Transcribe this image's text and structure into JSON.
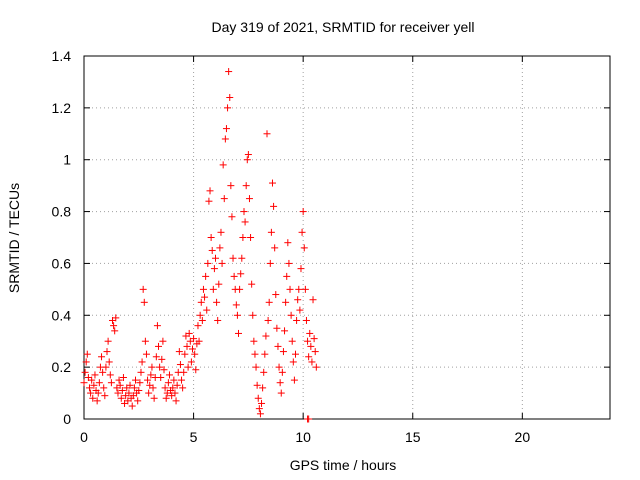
{
  "chart_data": {
    "type": "scatter",
    "title": "Day 319 of 2021, SRMTID for receiver yell",
    "xlabel": "GPS time / hours",
    "ylabel": "SRMTID / TECUs",
    "xlim": [
      0,
      24
    ],
    "ylim": [
      0,
      1.4
    ],
    "x_ticks": [
      0,
      5,
      10,
      15,
      20
    ],
    "y_ticks": [
      0,
      0.2,
      0.4,
      0.6,
      0.8,
      1,
      1.2,
      1.4
    ],
    "x_tick_labels": [
      "0",
      "5",
      "10",
      "15",
      "20"
    ],
    "y_tick_labels": [
      "0",
      "0.2",
      "0.4",
      "0.6",
      "0.8",
      "1",
      "1.2",
      "1.4"
    ],
    "grid": true,
    "marker": "+",
    "marker_color": "#ff0000",
    "series": [
      {
        "name": "SRMTID",
        "points": [
          [
            0.0,
            0.14
          ],
          [
            0.05,
            0.18
          ],
          [
            0.1,
            0.22
          ],
          [
            0.15,
            0.25
          ],
          [
            0.2,
            0.16
          ],
          [
            0.25,
            0.12
          ],
          [
            0.3,
            0.1
          ],
          [
            0.35,
            0.15
          ],
          [
            0.4,
            0.08
          ],
          [
            0.45,
            0.13
          ],
          [
            0.5,
            0.17
          ],
          [
            0.55,
            0.11
          ],
          [
            0.6,
            0.07
          ],
          [
            0.65,
            0.1
          ],
          [
            0.7,
            0.14
          ],
          [
            0.75,
            0.2
          ],
          [
            0.8,
            0.24
          ],
          [
            0.85,
            0.18
          ],
          [
            0.9,
            0.12
          ],
          [
            0.95,
            0.09
          ],
          [
            1.0,
            0.2
          ],
          [
            1.05,
            0.26
          ],
          [
            1.1,
            0.3
          ],
          [
            1.15,
            0.22
          ],
          [
            1.2,
            0.17
          ],
          [
            1.25,
            0.14
          ],
          [
            1.3,
            0.38
          ],
          [
            1.35,
            0.36
          ],
          [
            1.4,
            0.34
          ],
          [
            1.45,
            0.39
          ],
          [
            1.5,
            0.12
          ],
          [
            1.55,
            0.1
          ],
          [
            1.6,
            0.15
          ],
          [
            1.65,
            0.13
          ],
          [
            1.7,
            0.08
          ],
          [
            1.75,
            0.11
          ],
          [
            1.8,
            0.16
          ],
          [
            1.85,
            0.06
          ],
          [
            1.9,
            0.09
          ],
          [
            1.95,
            0.12
          ],
          [
            2.0,
            0.07
          ],
          [
            2.05,
            0.1
          ],
          [
            2.1,
            0.13
          ],
          [
            2.15,
            0.08
          ],
          [
            2.2,
            0.05
          ],
          [
            2.25,
            0.09
          ],
          [
            2.3,
            0.12
          ],
          [
            2.35,
            0.15
          ],
          [
            2.4,
            0.1
          ],
          [
            2.45,
            0.07
          ],
          [
            2.5,
            0.11
          ],
          [
            2.55,
            0.14
          ],
          [
            2.6,
            0.18
          ],
          [
            2.65,
            0.22
          ],
          [
            2.7,
            0.5
          ],
          [
            2.75,
            0.45
          ],
          [
            2.8,
            0.3
          ],
          [
            2.85,
            0.25
          ],
          [
            2.9,
            0.15
          ],
          [
            2.95,
            0.1
          ],
          [
            3.0,
            0.13
          ],
          [
            3.05,
            0.17
          ],
          [
            3.1,
            0.2
          ],
          [
            3.15,
            0.12
          ],
          [
            3.2,
            0.08
          ],
          [
            3.25,
            0.16
          ],
          [
            3.3,
            0.24
          ],
          [
            3.35,
            0.36
          ],
          [
            3.4,
            0.28
          ],
          [
            3.45,
            0.2
          ],
          [
            3.5,
            0.16
          ],
          [
            3.55,
            0.23
          ],
          [
            3.6,
            0.3
          ],
          [
            3.65,
            0.19
          ],
          [
            3.7,
            0.12
          ],
          [
            3.75,
            0.08
          ],
          [
            3.8,
            0.1
          ],
          [
            3.85,
            0.14
          ],
          [
            3.9,
            0.17
          ],
          [
            3.95,
            0.11
          ],
          [
            4.0,
            0.09
          ],
          [
            4.05,
            0.12
          ],
          [
            4.1,
            0.15
          ],
          [
            4.15,
            0.1
          ],
          [
            4.2,
            0.07
          ],
          [
            4.25,
            0.13
          ],
          [
            4.3,
            0.18
          ],
          [
            4.35,
            0.26
          ],
          [
            4.4,
            0.21
          ],
          [
            4.45,
            0.15
          ],
          [
            4.5,
            0.12
          ],
          [
            4.55,
            0.18
          ],
          [
            4.6,
            0.25
          ],
          [
            4.65,
            0.32
          ],
          [
            4.7,
            0.28
          ],
          [
            4.75,
            0.2
          ],
          [
            4.8,
            0.33
          ],
          [
            4.85,
            0.3
          ],
          [
            4.9,
            0.22
          ],
          [
            4.95,
            0.27
          ],
          [
            5.0,
            0.31
          ],
          [
            5.05,
            0.25
          ],
          [
            5.1,
            0.19
          ],
          [
            5.15,
            0.29
          ],
          [
            5.2,
            0.36
          ],
          [
            5.25,
            0.3
          ],
          [
            5.3,
            0.4
          ],
          [
            5.35,
            0.45
          ],
          [
            5.4,
            0.38
          ],
          [
            5.45,
            0.5
          ],
          [
            5.5,
            0.47
          ],
          [
            5.55,
            0.55
          ],
          [
            5.6,
            0.42
          ],
          [
            5.65,
            0.6
          ],
          [
            5.7,
            0.84
          ],
          [
            5.75,
            0.88
          ],
          [
            5.8,
            0.7
          ],
          [
            5.85,
            0.65
          ],
          [
            5.9,
            0.5
          ],
          [
            5.95,
            0.58
          ],
          [
            6.0,
            0.62
          ],
          [
            6.05,
            0.45
          ],
          [
            6.1,
            0.38
          ],
          [
            6.15,
            0.52
          ],
          [
            6.2,
            0.66
          ],
          [
            6.25,
            0.72
          ],
          [
            6.3,
            0.6
          ],
          [
            6.35,
            0.98
          ],
          [
            6.4,
            0.85
          ],
          [
            6.45,
            1.08
          ],
          [
            6.5,
            1.12
          ],
          [
            6.55,
            1.2
          ],
          [
            6.6,
            1.34
          ],
          [
            6.65,
            1.24
          ],
          [
            6.7,
            0.9
          ],
          [
            6.75,
            0.78
          ],
          [
            6.8,
            0.62
          ],
          [
            6.85,
            0.55
          ],
          [
            6.9,
            0.5
          ],
          [
            6.95,
            0.44
          ],
          [
            7.0,
            0.4
          ],
          [
            7.05,
            0.33
          ],
          [
            7.1,
            0.5
          ],
          [
            7.15,
            0.56
          ],
          [
            7.2,
            0.62
          ],
          [
            7.25,
            0.7
          ],
          [
            7.3,
            0.8
          ],
          [
            7.35,
            0.76
          ],
          [
            7.4,
            0.9
          ],
          [
            7.45,
            1.0
          ],
          [
            7.5,
            1.02
          ],
          [
            7.55,
            0.85
          ],
          [
            7.6,
            0.7
          ],
          [
            7.65,
            0.52
          ],
          [
            7.7,
            0.4
          ],
          [
            7.75,
            0.3
          ],
          [
            7.8,
            0.25
          ],
          [
            7.85,
            0.2
          ],
          [
            7.9,
            0.13
          ],
          [
            7.95,
            0.08
          ],
          [
            8.0,
            0.04
          ],
          [
            8.05,
            0.02
          ],
          [
            8.1,
            0.06
          ],
          [
            8.15,
            0.12
          ],
          [
            8.2,
            0.18
          ],
          [
            8.25,
            0.25
          ],
          [
            8.3,
            0.32
          ],
          [
            8.35,
            1.1
          ],
          [
            8.4,
            0.38
          ],
          [
            8.45,
            0.45
          ],
          [
            8.5,
            0.6
          ],
          [
            8.55,
            0.72
          ],
          [
            8.6,
            0.91
          ],
          [
            8.65,
            0.82
          ],
          [
            8.7,
            0.66
          ],
          [
            8.75,
            0.48
          ],
          [
            8.8,
            0.35
          ],
          [
            8.85,
            0.28
          ],
          [
            8.9,
            0.2
          ],
          [
            8.95,
            0.14
          ],
          [
            9.0,
            0.1
          ],
          [
            9.05,
            0.18
          ],
          [
            9.1,
            0.26
          ],
          [
            9.15,
            0.34
          ],
          [
            9.2,
            0.45
          ],
          [
            9.25,
            0.55
          ],
          [
            9.3,
            0.68
          ],
          [
            9.35,
            0.6
          ],
          [
            9.4,
            0.5
          ],
          [
            9.45,
            0.4
          ],
          [
            9.5,
            0.3
          ],
          [
            9.55,
            0.22
          ],
          [
            9.6,
            0.15
          ],
          [
            9.65,
            0.25
          ],
          [
            9.7,
            0.38
          ],
          [
            9.75,
            0.46
          ],
          [
            9.8,
            0.5
          ],
          [
            9.85,
            0.42
          ],
          [
            9.9,
            0.58
          ],
          [
            9.95,
            0.72
          ],
          [
            10.0,
            0.8
          ],
          [
            10.05,
            0.66
          ],
          [
            10.1,
            0.5
          ],
          [
            10.15,
            0.38
          ],
          [
            10.2,
            0.3
          ],
          [
            10.25,
            0.24
          ],
          [
            10.3,
            0.33
          ],
          [
            10.35,
            0.28
          ],
          [
            10.4,
            0.22
          ],
          [
            10.45,
            0.46
          ],
          [
            10.5,
            0.31
          ],
          [
            10.55,
            0.26
          ],
          [
            10.6,
            0.2
          ],
          [
            10.2,
            0.0
          ],
          [
            10.25,
            0.0
          ]
        ]
      }
    ]
  }
}
